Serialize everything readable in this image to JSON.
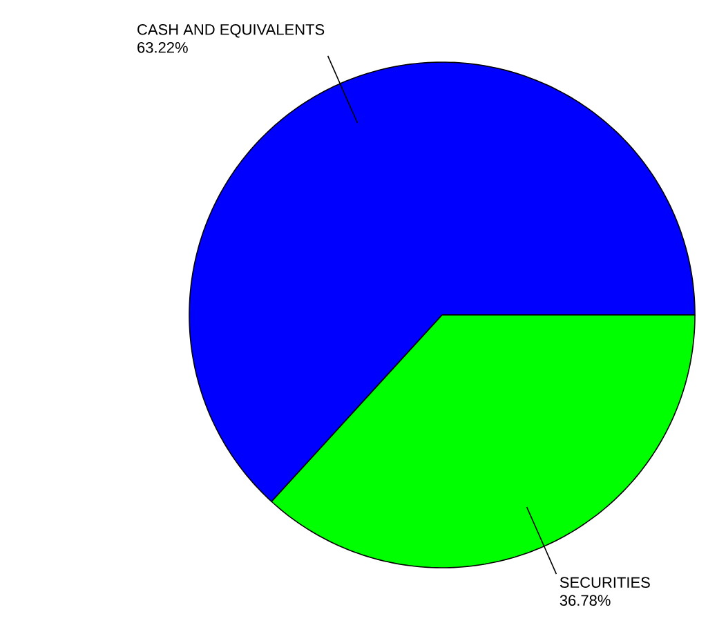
{
  "chart_data": {
    "type": "pie",
    "categories": [
      "CASH AND EQUIVALENTS",
      "SECURITIES"
    ],
    "values": [
      63.22,
      36.78
    ],
    "value_labels": [
      "63.22%",
      "36.78%"
    ],
    "colors": [
      "#0000ff",
      "#00ff00"
    ]
  }
}
